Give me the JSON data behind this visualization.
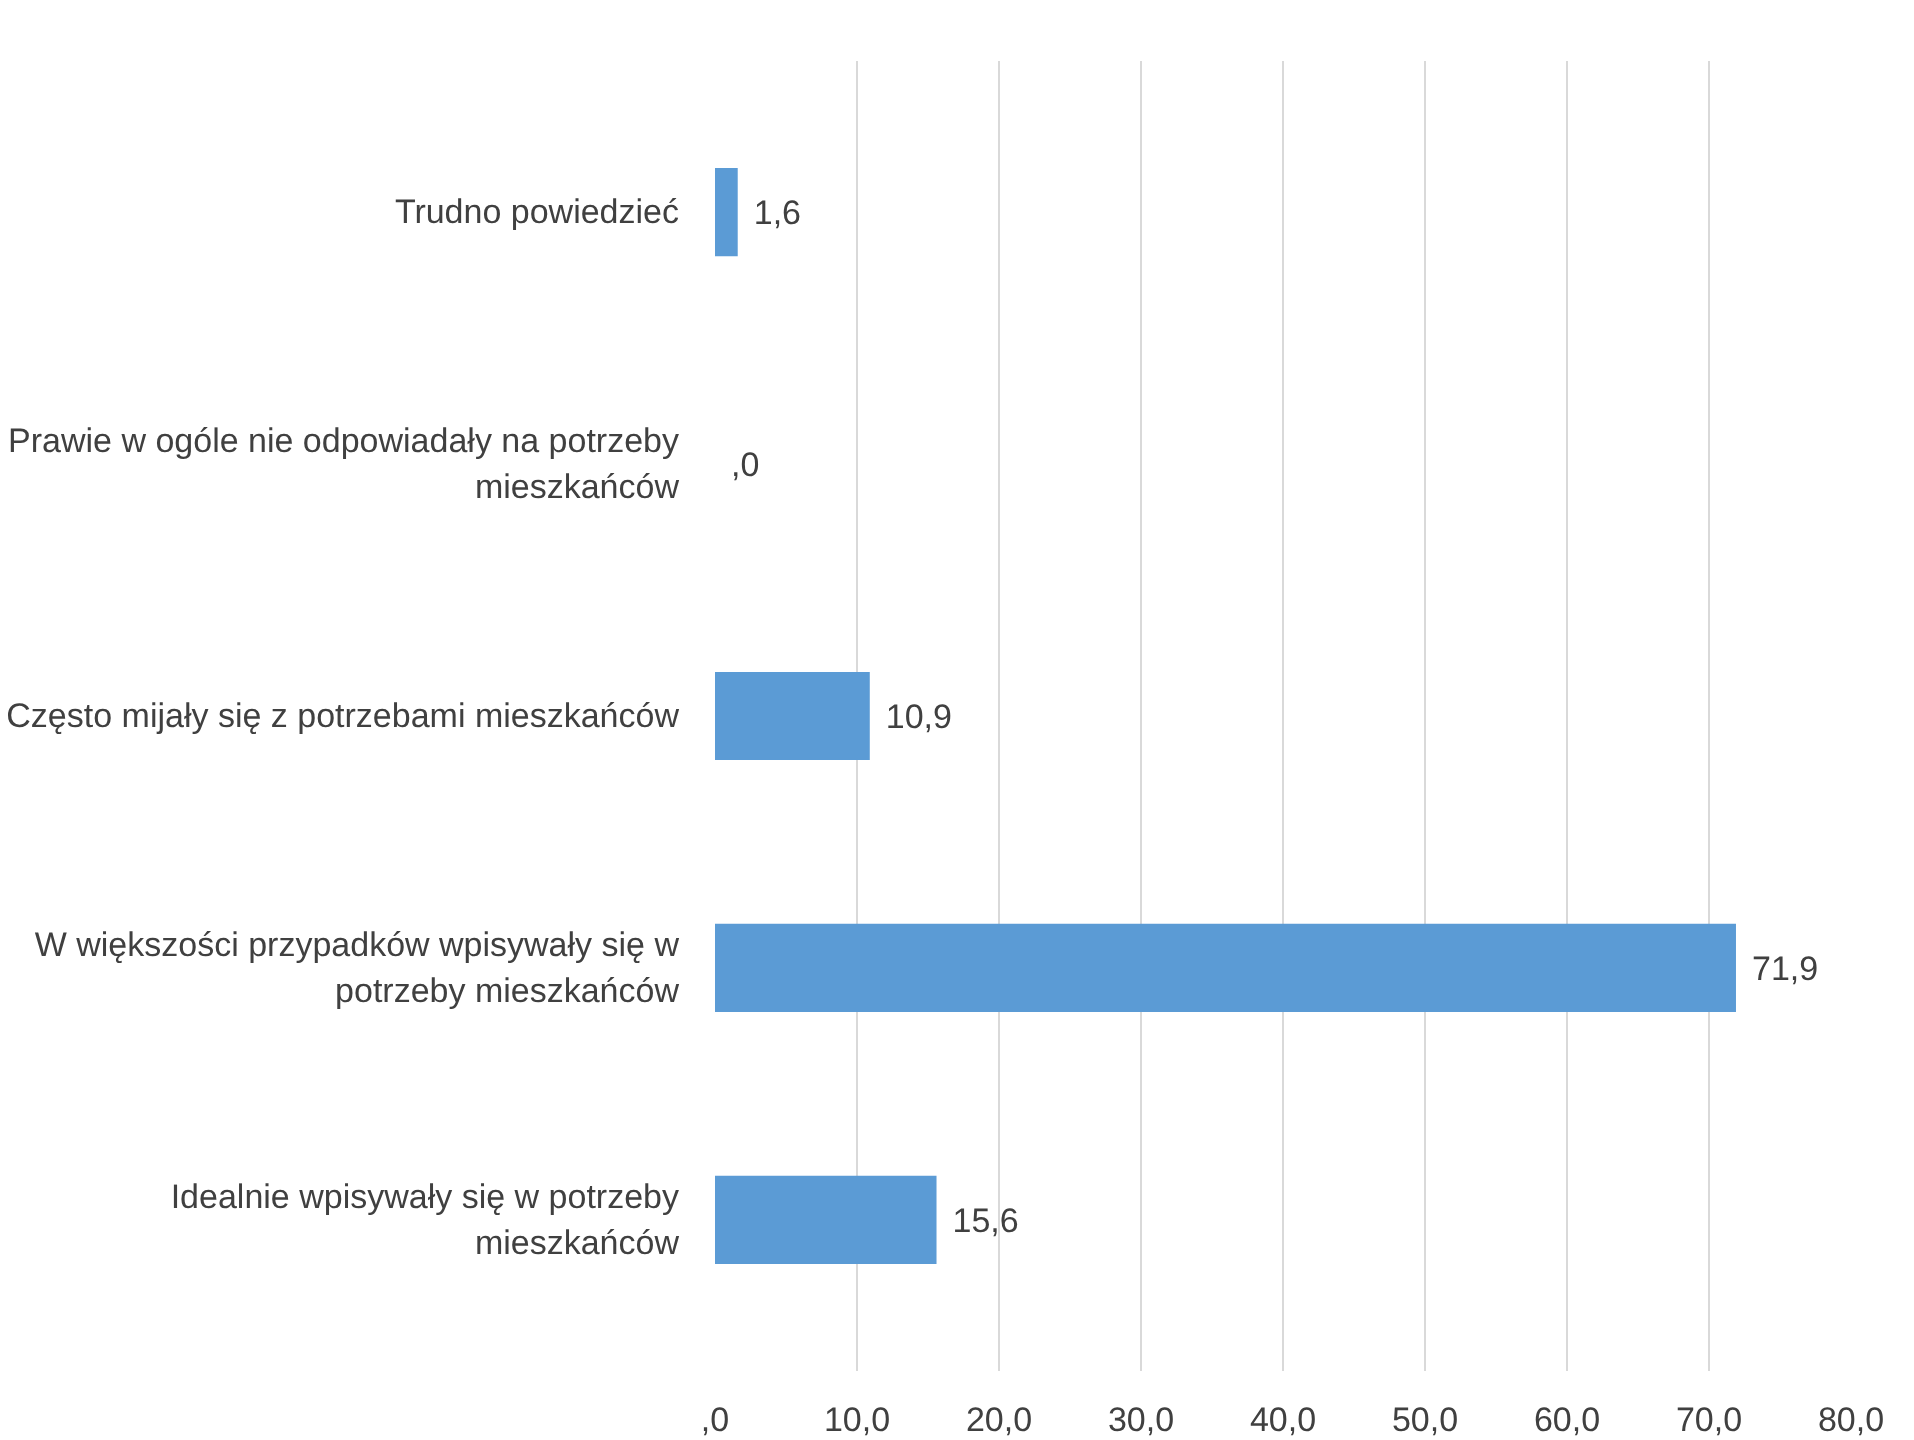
{
  "chart_data": {
    "type": "bar",
    "orientation": "horizontal",
    "categories": [
      "Trudno powiedzieć",
      "Prawie w ogóle nie odpowiadały na potrzeby mieszkańców",
      "Często mijały się z potrzebami mieszkańców",
      "W większości przypadków wpisywały się w potrzeby mieszkańców",
      "Idealnie wpisywały się w potrzeby mieszkańców"
    ],
    "values": [
      1.6,
      0,
      10.9,
      71.9,
      15.6
    ],
    "value_labels": [
      "1,6",
      ",0",
      "10,9",
      "71,9",
      "15,6"
    ],
    "color": "#5b9bd5",
    "xlim": [
      0,
      80
    ],
    "xticks": [
      {
        "value": 0,
        "label": ",0"
      },
      {
        "value": 10,
        "label": "10,0"
      },
      {
        "value": 20,
        "label": "20,0"
      },
      {
        "value": 30,
        "label": "30,0"
      },
      {
        "value": 40,
        "label": "40,0"
      },
      {
        "value": 50,
        "label": "50,0"
      },
      {
        "value": 60,
        "label": "60,0"
      },
      {
        "value": 70,
        "label": "70,0"
      },
      {
        "value": 80,
        "label": "80,0"
      }
    ],
    "grid": "x"
  }
}
